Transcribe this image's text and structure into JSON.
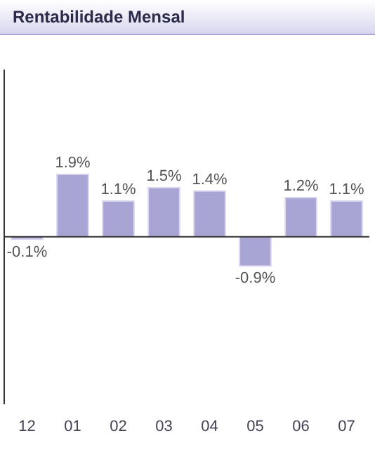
{
  "chart_data": {
    "type": "bar",
    "title": "Rentabilidade Mensal",
    "categories": [
      "12",
      "01",
      "02",
      "03",
      "04",
      "05",
      "06",
      "07"
    ],
    "values": [
      -0.1,
      1.9,
      1.1,
      1.5,
      1.4,
      -0.9,
      1.2,
      1.1
    ],
    "value_labels": [
      "-0.1%",
      "1.9%",
      "1.1%",
      "1.5%",
      "1.4%",
      "-0.9%",
      "1.2%",
      "1.1%"
    ],
    "color": "#a8a4d4",
    "ylim": [
      -5,
      5
    ],
    "tick_labels": "x",
    "grid": false,
    "legend": false
  }
}
